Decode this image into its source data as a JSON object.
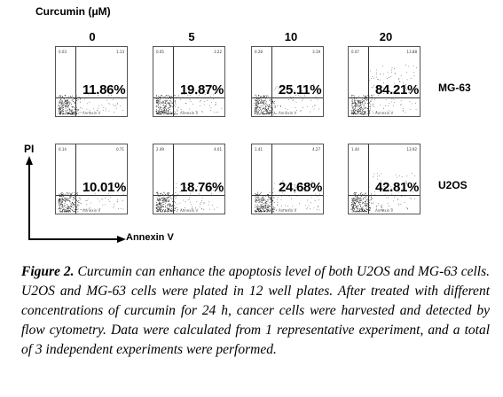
{
  "header": {
    "treatment_label": "Curcumin (μM)"
  },
  "concentrations": [
    "0",
    "5",
    "10",
    "20"
  ],
  "rows": [
    {
      "cell_line": "MG-63",
      "panels": [
        {
          "ul": "0.03",
          "ur": "1.13",
          "ll": "88.58",
          "percent": "11.86%"
        },
        {
          "ul": "0.65",
          "ur": "3.22",
          "ll": "80.43",
          "percent": "19.87%"
        },
        {
          "ul": "0.28",
          "ur": "3.19",
          "ll": "74.68",
          "percent": "25.11%"
        },
        {
          "ul": "0.07",
          "ur": "13.88",
          "ll": "15.72",
          "percent": "84.21%"
        }
      ]
    },
    {
      "cell_line": "U2OS",
      "panels": [
        {
          "ul": "0.14",
          "ur": "0.71",
          "ll": "89.85",
          "percent": "10.01%"
        },
        {
          "ul": "2.49",
          "ur": "4.01",
          "ll": "78.29",
          "percent": "18.76%"
        },
        {
          "ul": "1.41",
          "ur": "4.27",
          "ll": "73.69",
          "percent": "24.68%"
        },
        {
          "ul": "1.44",
          "ur": "13.92",
          "ll": "55.75",
          "percent": "42.81%"
        }
      ]
    }
  ],
  "axes": {
    "y_label": "PI",
    "x_label": "Annexin V",
    "panel_x_label": "Annexin V"
  },
  "caption": {
    "figure_label": "Figure 2.",
    "text": " Curcumin can enhance the apoptosis level of both U2OS and MG-63 cells. U2OS and MG-63 cells were plated in 12 well plates. After treated with different concentrations of curcumin for 24 h, cancer cells were harvested and detected by flow cytometry. Data were calculated from 1 representative experiment, and a total of 3 independent experiments were performed."
  }
}
